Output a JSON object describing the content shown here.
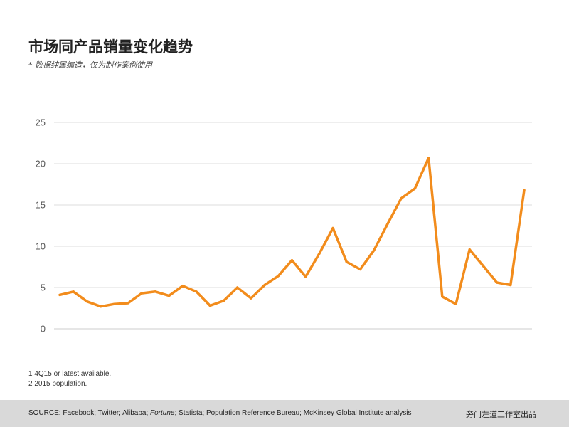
{
  "header": {
    "title": "市场同产品销量变化趋势",
    "subtitle": "* 数据纯属编造，仅为制作案例使用"
  },
  "chart_data": {
    "type": "line",
    "title": "市场同产品销量变化趋势",
    "subtitle": "* 数据纯属编造，仅为制作案例使用",
    "xlabel": "",
    "ylabel": "",
    "ylim": [
      0,
      25
    ],
    "yticks": [
      0,
      5,
      10,
      15,
      20,
      25
    ],
    "grid": true,
    "legend": "none",
    "color": "#f28c1c",
    "x": [
      1,
      2,
      3,
      4,
      5,
      6,
      7,
      8,
      9,
      10,
      11,
      12,
      13,
      14,
      15,
      16,
      17,
      18,
      19,
      20,
      21,
      22,
      23,
      24,
      25,
      26,
      27,
      28,
      29,
      30,
      31,
      32,
      33,
      34,
      35
    ],
    "series": [
      {
        "values": [
          4.1,
          4.5,
          3.3,
          2.7,
          3.0,
          3.1,
          4.3,
          4.5,
          4.0,
          5.2,
          4.5,
          2.8,
          3.4,
          5.0,
          3.7,
          5.3,
          6.4,
          8.3,
          6.3,
          9.1,
          12.2,
          8.1,
          7.2,
          9.5,
          12.7,
          15.8,
          17.0,
          20.7,
          3.9,
          3.0,
          9.6,
          7.6,
          5.6,
          5.3,
          16.8
        ]
      }
    ]
  },
  "footnotes": {
    "note1": "1 4Q15 or latest available.",
    "note2": "2 2015 population."
  },
  "footer": {
    "source_prefix": "SOURCE: Facebook; Twitter; Alibaba; ",
    "source_italic": "Fortune",
    "source_suffix": "; Statista; Population Reference Bureau; McKinsey Global Institute analysis",
    "credit": "旁门左道工作室出品"
  }
}
